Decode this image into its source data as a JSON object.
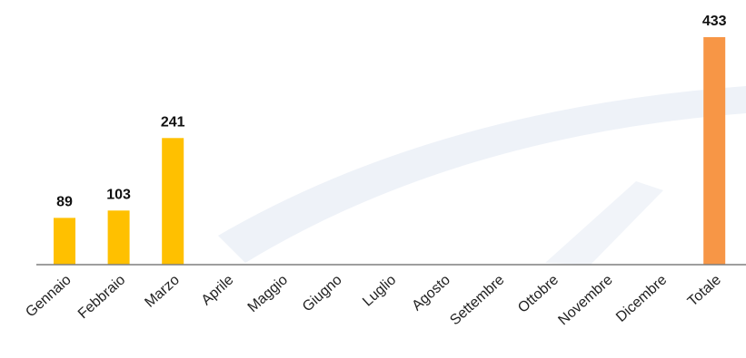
{
  "chart_data": {
    "type": "bar",
    "categories": [
      "Gennaio",
      "Febbraio",
      "Marzo",
      "Aprile",
      "Maggio",
      "Giugno",
      "Luglio",
      "Agosto",
      "Settembre",
      "Ottobre",
      "Novembre",
      "Dicembre",
      "Totale"
    ],
    "values": [
      89,
      103,
      241,
      null,
      null,
      null,
      null,
      null,
      null,
      null,
      null,
      null,
      433
    ],
    "data_labels": [
      "89",
      "103",
      "241",
      "",
      "",
      "",
      "",
      "",
      "",
      "",
      "",
      "",
      "433"
    ],
    "title": "",
    "xlabel": "",
    "ylabel": "",
    "ylim": [
      0,
      433
    ],
    "grid": false,
    "legend": "none",
    "colors": {
      "month_bar": "#FFC000",
      "total_bar": "#F79646",
      "axis": "#7F7F7F",
      "watermark": "#E9EEF5"
    }
  }
}
